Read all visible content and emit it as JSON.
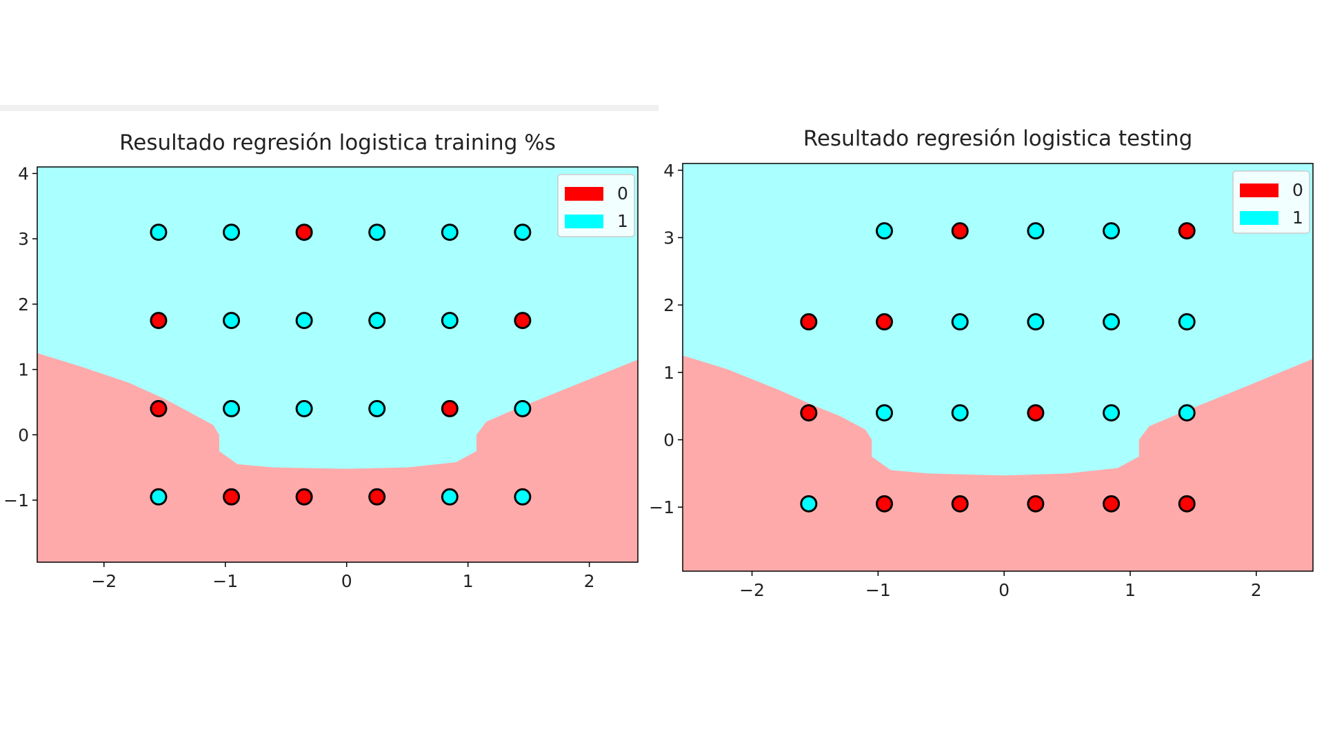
{
  "chart_data": [
    {
      "type": "scatter",
      "title": "Resultado regresión logistica training %s",
      "xlabel": "",
      "ylabel": "",
      "xlim": [
        -2.55,
        2.4
      ],
      "ylim": [
        -1.95,
        4.1
      ],
      "xticks": [
        "−2",
        "−1",
        "0",
        "1",
        "2"
      ],
      "yticks": [
        "−1",
        "0",
        "1",
        "2",
        "3",
        "4"
      ],
      "xtick_values": [
        -2,
        -1,
        0,
        1,
        2
      ],
      "ytick_values": [
        -1,
        0,
        1,
        2,
        3,
        4
      ],
      "legend": {
        "position": "top-right",
        "entries": [
          {
            "label": "0",
            "color": "#ff0000"
          },
          {
            "label": "1",
            "color": "#00ffff"
          }
        ]
      },
      "regions": {
        "class0_color": "#ffaaaa",
        "class1_color": "#aaffff",
        "boundary": [
          [
            -2.55,
            1.25
          ],
          [
            -2.2,
            1.05
          ],
          [
            -1.8,
            0.8
          ],
          [
            -1.5,
            0.55
          ],
          [
            -1.3,
            0.35
          ],
          [
            -1.1,
            0.15
          ],
          [
            -1.05,
            0.0
          ],
          [
            -1.05,
            -0.25
          ],
          [
            -0.9,
            -0.45
          ],
          [
            -0.6,
            -0.5
          ],
          [
            0,
            -0.52
          ],
          [
            0.5,
            -0.5
          ],
          [
            0.9,
            -0.42
          ],
          [
            1.07,
            -0.25
          ],
          [
            1.07,
            0.0
          ],
          [
            1.15,
            0.2
          ],
          [
            1.4,
            0.4
          ],
          [
            1.8,
            0.7
          ],
          [
            2.4,
            1.15
          ]
        ]
      },
      "series": [
        {
          "label": "0",
          "color": "#ff0000",
          "points": [
            [
              -0.35,
              3.1
            ],
            [
              -1.55,
              1.75
            ],
            [
              1.45,
              1.75
            ],
            [
              -1.55,
              0.4
            ],
            [
              0.85,
              0.4
            ],
            [
              -0.95,
              -0.95
            ],
            [
              -0.35,
              -0.95
            ],
            [
              0.25,
              -0.95
            ]
          ]
        },
        {
          "label": "1",
          "color": "#00ffff",
          "points": [
            [
              -1.55,
              3.1
            ],
            [
              -0.95,
              3.1
            ],
            [
              0.25,
              3.1
            ],
            [
              0.85,
              3.1
            ],
            [
              1.45,
              3.1
            ],
            [
              -0.95,
              1.75
            ],
            [
              -0.35,
              1.75
            ],
            [
              0.25,
              1.75
            ],
            [
              0.85,
              1.75
            ],
            [
              -0.95,
              0.4
            ],
            [
              -0.35,
              0.4
            ],
            [
              0.25,
              0.4
            ],
            [
              1.45,
              0.4
            ],
            [
              -1.55,
              -0.95
            ],
            [
              0.85,
              -0.95
            ],
            [
              1.45,
              -0.95
            ]
          ]
        }
      ]
    },
    {
      "type": "scatter",
      "title": "Resultado regresión logistica testing",
      "xlabel": "",
      "ylabel": "",
      "xlim": [
        -2.55,
        2.45
      ],
      "ylim": [
        -1.95,
        4.1
      ],
      "xticks": [
        "−2",
        "−1",
        "0",
        "1",
        "2"
      ],
      "yticks": [
        "−1",
        "0",
        "1",
        "2",
        "3",
        "4"
      ],
      "xtick_values": [
        -2,
        -1,
        0,
        1,
        2
      ],
      "ytick_values": [
        -1,
        0,
        1,
        2,
        3,
        4
      ],
      "legend": {
        "position": "top-right",
        "entries": [
          {
            "label": "0",
            "color": "#ff0000"
          },
          {
            "label": "1",
            "color": "#00ffff"
          }
        ]
      },
      "regions": {
        "class0_color": "#ffaaaa",
        "class1_color": "#aaffff",
        "boundary": [
          [
            -2.55,
            1.25
          ],
          [
            -2.2,
            1.05
          ],
          [
            -1.8,
            0.75
          ],
          [
            -1.5,
            0.5
          ],
          [
            -1.3,
            0.35
          ],
          [
            -1.1,
            0.15
          ],
          [
            -1.05,
            0.0
          ],
          [
            -1.05,
            -0.25
          ],
          [
            -0.9,
            -0.45
          ],
          [
            -0.6,
            -0.5
          ],
          [
            0,
            -0.53
          ],
          [
            0.5,
            -0.5
          ],
          [
            0.9,
            -0.42
          ],
          [
            1.07,
            -0.25
          ],
          [
            1.07,
            0.0
          ],
          [
            1.15,
            0.2
          ],
          [
            1.4,
            0.4
          ],
          [
            1.8,
            0.7
          ],
          [
            2.45,
            1.2
          ]
        ]
      },
      "series": [
        {
          "label": "0",
          "color": "#ff0000",
          "points": [
            [
              -0.35,
              3.1
            ],
            [
              1.45,
              3.1
            ],
            [
              -1.55,
              1.75
            ],
            [
              -0.95,
              1.75
            ],
            [
              -1.55,
              0.4
            ],
            [
              0.25,
              0.4
            ],
            [
              -0.95,
              -0.95
            ],
            [
              -0.35,
              -0.95
            ],
            [
              0.25,
              -0.95
            ],
            [
              0.85,
              -0.95
            ],
            [
              1.45,
              -0.95
            ]
          ]
        },
        {
          "label": "1",
          "color": "#00ffff",
          "points": [
            [
              -0.95,
              3.1
            ],
            [
              0.25,
              3.1
            ],
            [
              0.85,
              3.1
            ],
            [
              -0.35,
              1.75
            ],
            [
              0.25,
              1.75
            ],
            [
              0.85,
              1.75
            ],
            [
              1.45,
              1.75
            ],
            [
              -0.95,
              0.4
            ],
            [
              -0.35,
              0.4
            ],
            [
              0.85,
              0.4
            ],
            [
              1.45,
              0.4
            ],
            [
              -1.55,
              -0.95
            ]
          ]
        }
      ]
    }
  ]
}
